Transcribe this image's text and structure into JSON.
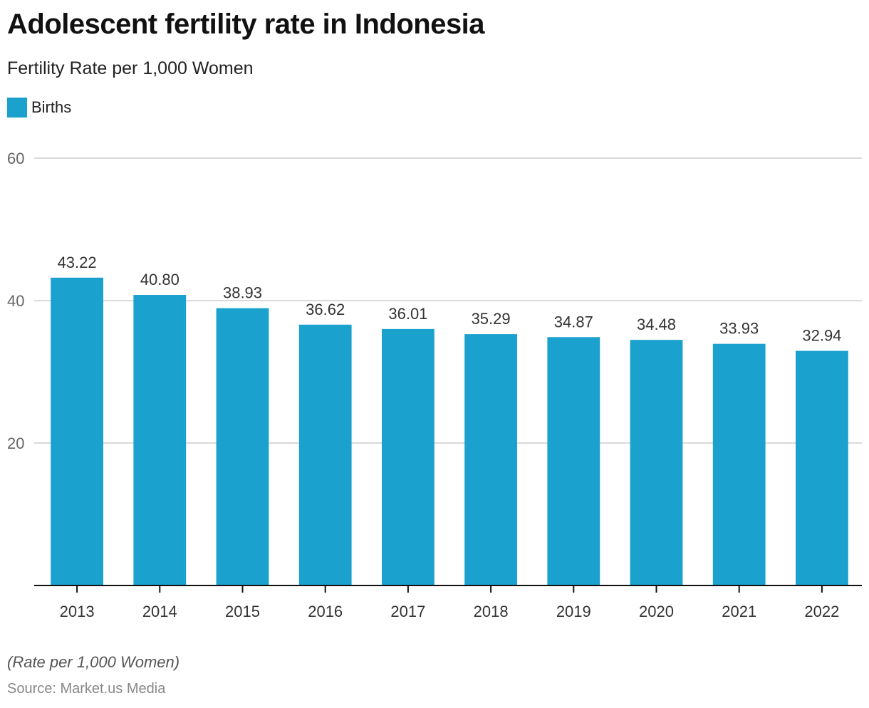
{
  "header": {
    "title": "Adolescent fertility rate in Indonesia",
    "subtitle": "Fertility Rate per 1,000 Women"
  },
  "legend": {
    "items": [
      {
        "label": "Births",
        "color": "#1aa1cd"
      }
    ]
  },
  "footer": {
    "note": "(Rate per 1,000 Women)",
    "source": "Source: Market.us Media"
  },
  "chart_data": {
    "type": "bar",
    "title": "Adolescent fertility rate in Indonesia",
    "subtitle": "Fertility Rate per 1,000 Women",
    "xlabel": "",
    "ylabel": "",
    "categories": [
      "2013",
      "2014",
      "2015",
      "2016",
      "2017",
      "2018",
      "2019",
      "2020",
      "2021",
      "2022"
    ],
    "series": [
      {
        "name": "Births",
        "color": "#1aa1cd",
        "values": [
          43.22,
          40.8,
          38.93,
          36.62,
          36.01,
          35.29,
          34.87,
          34.48,
          33.93,
          32.94
        ]
      }
    ],
    "value_labels": [
      "43.22",
      "40.80",
      "38.93",
      "36.62",
      "36.01",
      "35.29",
      "34.87",
      "34.48",
      "33.93",
      "32.94"
    ],
    "ylim": [
      0,
      60
    ],
    "yticks": [
      20,
      40,
      60
    ],
    "grid": true,
    "legend_position": "top-left"
  }
}
